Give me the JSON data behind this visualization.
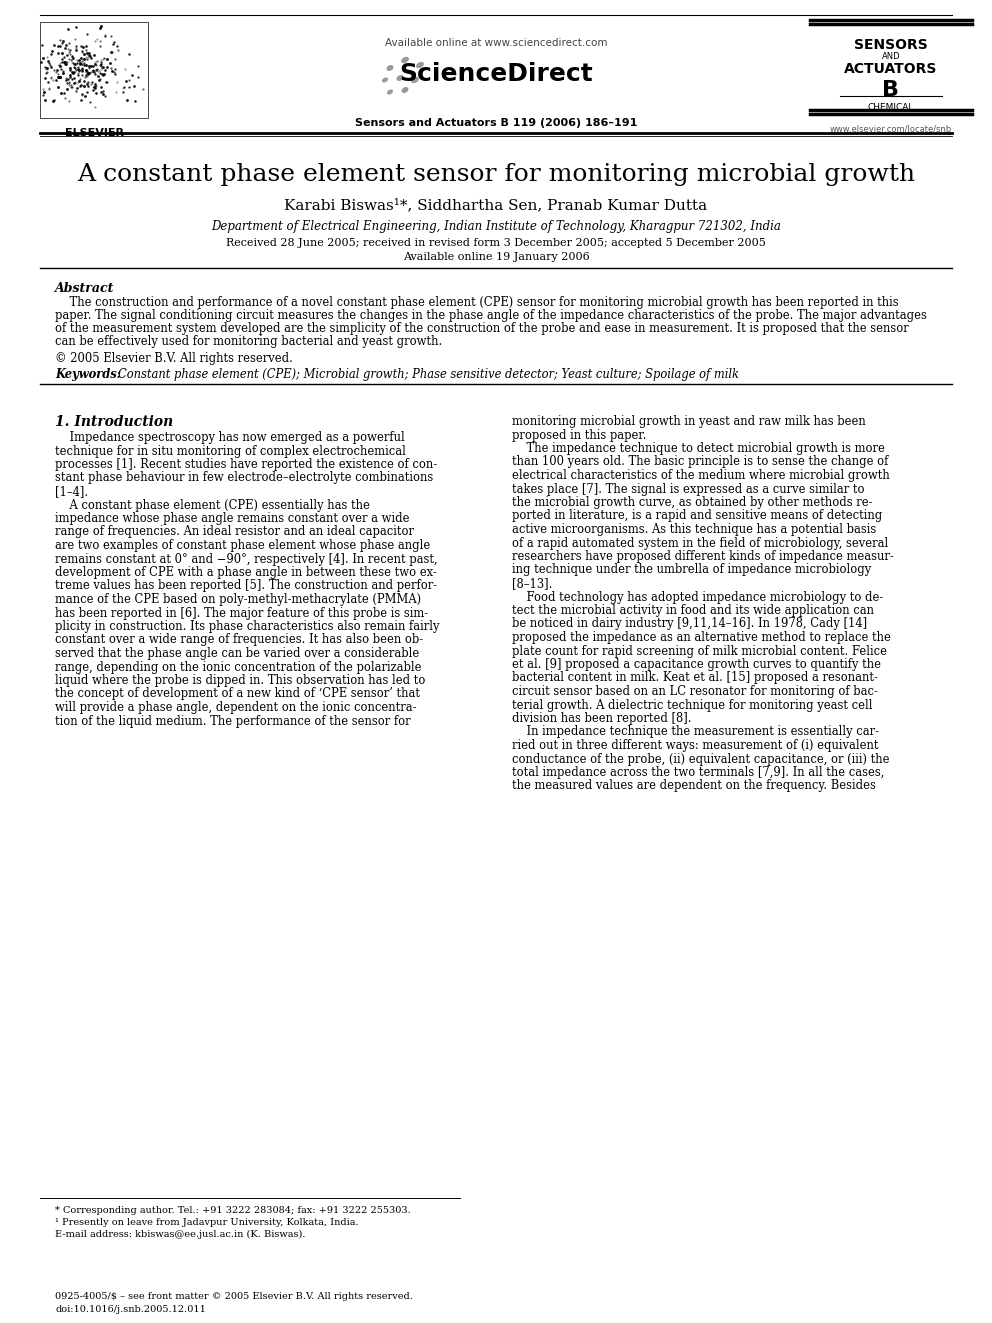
{
  "title": "A constant phase element sensor for monitoring microbial growth",
  "authors": "Karabi Biswas¹*, Siddhartha Sen, Pranab Kumar Dutta",
  "affiliation": "Department of Electrical Engineering, Indian Institute of Technology, Kharagpur 721302, India",
  "received": "Received 28 June 2005; received in revised form 3 December 2005; accepted 5 December 2005",
  "available": "Available online 19 January 2006",
  "journal": "Sensors and Actuators B 119 (2006) 186–191",
  "sciencedirect_url": "Available online at www.sciencedirect.com",
  "elsevier_url": "www.elsevier.com/locate/snb",
  "abstract_title": "Abstract",
  "keywords_label": "Keywords: ",
  "keywords_text": "Constant phase element (CPE); Microbial growth; Phase sensitive detector; Yeast culture; Spoilage of milk",
  "section1_title": "1. Introduction",
  "footnote1": "* Corresponding author. Tel.: +91 3222 283084; fax: +91 3222 255303.",
  "footnote2": "¹ Presently on leave from Jadavpur University, Kolkata, India.",
  "footnote3": "E-mail address: kbiswas@ee.jusl.ac.in (K. Biswas).",
  "footer_left": "0925-4005/$ – see front matter © 2005 Elsevier B.V. All rights reserved.",
  "footer_doi": "doi:10.1016/j.snb.2005.12.011",
  "bg_color": "#ffffff",
  "text_color": "#000000"
}
